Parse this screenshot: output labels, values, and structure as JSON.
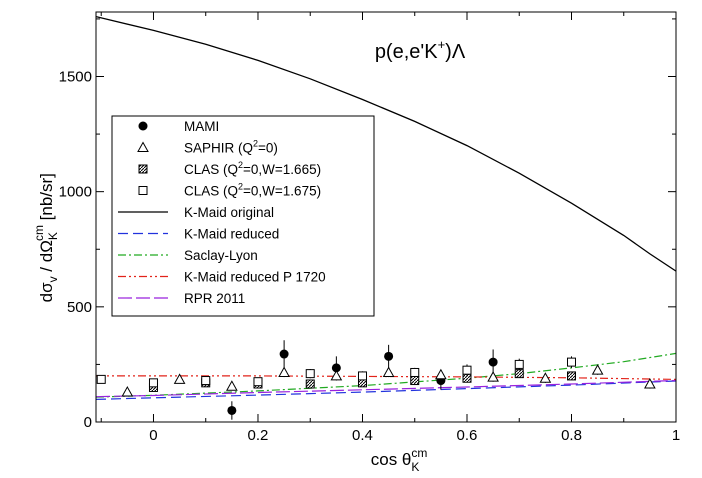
{
  "chart_data": {
    "type": "scatter",
    "title": "",
    "annotation": "p(e,e'K+)Λ",
    "xlabel": "cos θ_K^cm",
    "ylabel": "dσ_v / dΩ_K^cm  [nb/sr]",
    "xlim": [
      -0.11,
      1.0
    ],
    "ylim": [
      0,
      1780
    ],
    "x_ticks": [
      0,
      0.2,
      0.4,
      0.6,
      0.8,
      1
    ],
    "x_tick_labels": [
      "0",
      "0.2",
      "0.4",
      "0.6",
      "0.8",
      "1"
    ],
    "y_ticks": [
      0,
      500,
      1000,
      1500
    ],
    "y_tick_labels": [
      "0",
      "500",
      "1000",
      "1500"
    ],
    "grid": false,
    "legend_placement": "center-left",
    "legend": [
      {
        "label": "MAMI",
        "kind": "marker",
        "marker": "filled-circle"
      },
      {
        "label": "SAPHIR (Q2=0)",
        "kind": "marker",
        "marker": "open-triangle"
      },
      {
        "label": "CLAS (Q2=0,W=1.665)",
        "kind": "marker",
        "marker": "hatched-square"
      },
      {
        "label": "CLAS (Q2=0,W=1.675)",
        "kind": "marker",
        "marker": "open-square"
      },
      {
        "label": "K-Maid original",
        "kind": "line",
        "color": "#000000",
        "dash": "solid"
      },
      {
        "label": "K-Maid reduced",
        "kind": "line",
        "color": "#2233dd",
        "dash": "dashed"
      },
      {
        "label": "Saclay-Lyon",
        "kind": "line",
        "color": "#22aa22",
        "dash": "dashdot"
      },
      {
        "label": "K-Maid reduced P 1720",
        "kind": "line",
        "color": "#e2231a",
        "dash": "dashdotdot"
      },
      {
        "label": "RPR 2011",
        "kind": "line",
        "color": "#9922dd",
        "dash": "longdash"
      }
    ],
    "lines": [
      {
        "name": "K-Maid original",
        "color": "#000000",
        "dash": "solid",
        "x": [
          -0.11,
          0,
          0.1,
          0.2,
          0.3,
          0.4,
          0.5,
          0.6,
          0.7,
          0.8,
          0.9,
          0.95,
          1.0
        ],
        "y": [
          1760,
          1700,
          1640,
          1570,
          1490,
          1400,
          1305,
          1200,
          1080,
          950,
          810,
          730,
          655
        ]
      },
      {
        "name": "K-Maid reduced",
        "color": "#2233dd",
        "dash": "dashed",
        "x": [
          -0.11,
          0,
          0.2,
          0.4,
          0.6,
          0.8,
          1.0
        ],
        "y": [
          98,
          105,
          117,
          130,
          145,
          160,
          178
        ]
      },
      {
        "name": "Saclay-Lyon",
        "color": "#22aa22",
        "dash": "dashdot",
        "x": [
          -0.11,
          0,
          0.2,
          0.4,
          0.6,
          0.7,
          0.8,
          0.9,
          1.0
        ],
        "y": [
          108,
          116,
          135,
          158,
          190,
          210,
          235,
          262,
          298
        ]
      },
      {
        "name": "K-Maid reduced P 1720",
        "color": "#e2231a",
        "dash": "dashdotdot",
        "x": [
          -0.11,
          0,
          0.2,
          0.4,
          0.6,
          0.8,
          1.0
        ],
        "y": [
          200,
          200,
          200,
          198,
          196,
          192,
          185
        ]
      },
      {
        "name": "RPR 2011",
        "color": "#9922dd",
        "dash": "longdash",
        "x": [
          -0.11,
          0,
          0.2,
          0.4,
          0.6,
          0.8,
          1.0
        ],
        "y": [
          110,
          115,
          128,
          140,
          152,
          165,
          180
        ]
      }
    ],
    "points": [
      {
        "name": "MAMI",
        "marker": "filled-circle",
        "x": [
          0.15,
          0.25,
          0.35,
          0.45,
          0.55,
          0.65
        ],
        "y": [
          50,
          295,
          235,
          285,
          180,
          260
        ],
        "err": [
          40,
          60,
          50,
          50,
          40,
          55
        ]
      },
      {
        "name": "SAPHIR (Q2=0)",
        "marker": "open-triangle",
        "x": [
          -0.05,
          0.05,
          0.15,
          0.25,
          0.35,
          0.45,
          0.55,
          0.65,
          0.75,
          0.85,
          0.95
        ],
        "y": [
          130,
          185,
          155,
          215,
          200,
          215,
          205,
          195,
          190,
          225,
          165
        ],
        "err": [
          15,
          15,
          15,
          20,
          20,
          20,
          20,
          20,
          20,
          20,
          20
        ]
      },
      {
        "name": "CLAS (Q2=0,W=1.665)",
        "marker": "hatched-square",
        "x": [
          0,
          0.1,
          0.2,
          0.3,
          0.4,
          0.5,
          0.6,
          0.7,
          0.8
        ],
        "y": [
          150,
          170,
          165,
          165,
          170,
          180,
          190,
          210,
          200
        ],
        "err": [
          10,
          10,
          10,
          10,
          10,
          10,
          10,
          10,
          10
        ]
      },
      {
        "name": "CLAS (Q2=0,W=1.675)",
        "marker": "open-square",
        "x": [
          -0.1,
          0,
          0.1,
          0.2,
          0.3,
          0.4,
          0.5,
          0.6,
          0.7,
          0.8
        ],
        "y": [
          185,
          170,
          180,
          175,
          210,
          200,
          215,
          225,
          250,
          260
        ],
        "err": [
          15,
          15,
          15,
          15,
          20,
          20,
          20,
          25,
          25,
          25
        ]
      }
    ]
  }
}
